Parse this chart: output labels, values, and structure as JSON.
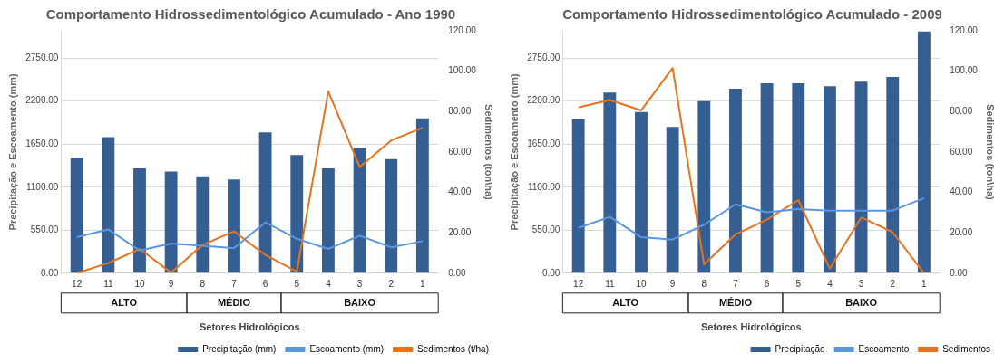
{
  "chart_data": [
    {
      "type": "bar",
      "title": "Comportamento Hidrossedimentológico Acumulado - Ano 1990",
      "xlabel": "Setores Hidrológicos",
      "ylabel": "Precipitação e Escoamento (mm)",
      "y2label": "Sedimentos (ton\\ha)",
      "categories": [
        "12",
        "11",
        "10",
        "9",
        "8",
        "7",
        "6",
        "5",
        "4",
        "3",
        "2",
        "1"
      ],
      "series": [
        {
          "name": "Precipitação (mm)",
          "color": "#355f93",
          "values": [
            1480,
            1740,
            1340,
            1300,
            1240,
            1200,
            1800,
            1510,
            1340,
            1600,
            1460,
            1980
          ]
        },
        {
          "name": "Escoamento (mm)",
          "type": "line",
          "color": "#5b97e0",
          "values": [
            460,
            560,
            290,
            380,
            350,
            320,
            650,
            440,
            310,
            480,
            330,
            410
          ]
        },
        {
          "name": "Sedimentos (t/ha)",
          "type": "line",
          "axis": "y2",
          "color": "#e8731c",
          "values": [
            0,
            5,
            12,
            0.3,
            14,
            20.7,
            9,
            0.8,
            90,
            52.6,
            65.7,
            72
          ]
        }
      ],
      "ylim": [
        0,
        3100
      ],
      "yticks": [
        {
          "value": 0,
          "label": "0.00"
        },
        {
          "value": 550,
          "label": "550.00"
        },
        {
          "value": 1100,
          "label": "1100.00"
        },
        {
          "value": 1650,
          "label": "1650.00"
        },
        {
          "value": 2200,
          "label": "2200.00"
        },
        {
          "value": 2750,
          "label": "2750.00"
        }
      ],
      "y2lim": [
        0,
        120
      ],
      "y2ticks": [
        {
          "value": 0,
          "label": "0.00"
        },
        {
          "value": 20,
          "label": "20.00"
        },
        {
          "value": 40,
          "label": "40.00"
        },
        {
          "value": 60,
          "label": "60.00"
        },
        {
          "value": 80,
          "label": "80.00"
        },
        {
          "value": 100,
          "label": "100.00"
        },
        {
          "value": 120,
          "label": "120.00"
        }
      ],
      "annotations": [
        "ALTO",
        "MÉDIO",
        "BAIXO"
      ],
      "grid": "y",
      "legend": "bottom",
      "marker": "none"
    },
    {
      "type": "bar",
      "title": "Comportamento Hidrossedimentológico Acumulado - 2009",
      "xlabel": "Setores Hidrológicos",
      "ylabel": "Precipitação e Escoamento (mm)",
      "y2label": "Sedimentos (ton\\ha)",
      "categories": [
        "12",
        "11",
        "10",
        "9",
        "8",
        "7",
        "6",
        "5",
        "4",
        "3",
        "2",
        "1"
      ],
      "series": [
        {
          "name": "Precipitação",
          "color": "#355f93",
          "values": [
            1970,
            2310,
            2060,
            1870,
            2200,
            2360,
            2430,
            2430,
            2390,
            2450,
            2510,
            3090
          ]
        },
        {
          "name": "Escoamento",
          "type": "line",
          "color": "#5b97e0",
          "values": [
            580,
            720,
            460,
            430,
            620,
            880,
            780,
            820,
            800,
            800,
            800,
            960
          ]
        },
        {
          "name": "Sedimentos",
          "type": "line",
          "axis": "y2",
          "color": "#e8731c",
          "values": [
            82,
            85.7,
            80.6,
            101.6,
            4.4,
            19.2,
            26.5,
            36.2,
            2.3,
            27.6,
            20.3,
            0
          ]
        }
      ],
      "ylim": [
        0,
        3100
      ],
      "yticks": [
        {
          "value": 0,
          "label": "0.00"
        },
        {
          "value": 550,
          "label": "550.00"
        },
        {
          "value": 1100,
          "label": "1100.00"
        },
        {
          "value": 1650,
          "label": "1650.00"
        },
        {
          "value": 2200,
          "label": "2200.00"
        },
        {
          "value": 2750,
          "label": "2750.00"
        }
      ],
      "y2lim": [
        0,
        120
      ],
      "y2ticks": [
        {
          "value": 0,
          "label": "0.00"
        },
        {
          "value": 20,
          "label": "20.00"
        },
        {
          "value": 40,
          "label": "40.00"
        },
        {
          "value": 60,
          "label": "60.00"
        },
        {
          "value": 80,
          "label": "80.00"
        },
        {
          "value": 100,
          "label": "100.00"
        },
        {
          "value": 120,
          "label": "120.00"
        }
      ],
      "annotations": [
        "ALTO",
        "MÉDIO",
        "BAIXO"
      ],
      "grid": "y",
      "legend": "bottom",
      "marker": "none"
    }
  ]
}
